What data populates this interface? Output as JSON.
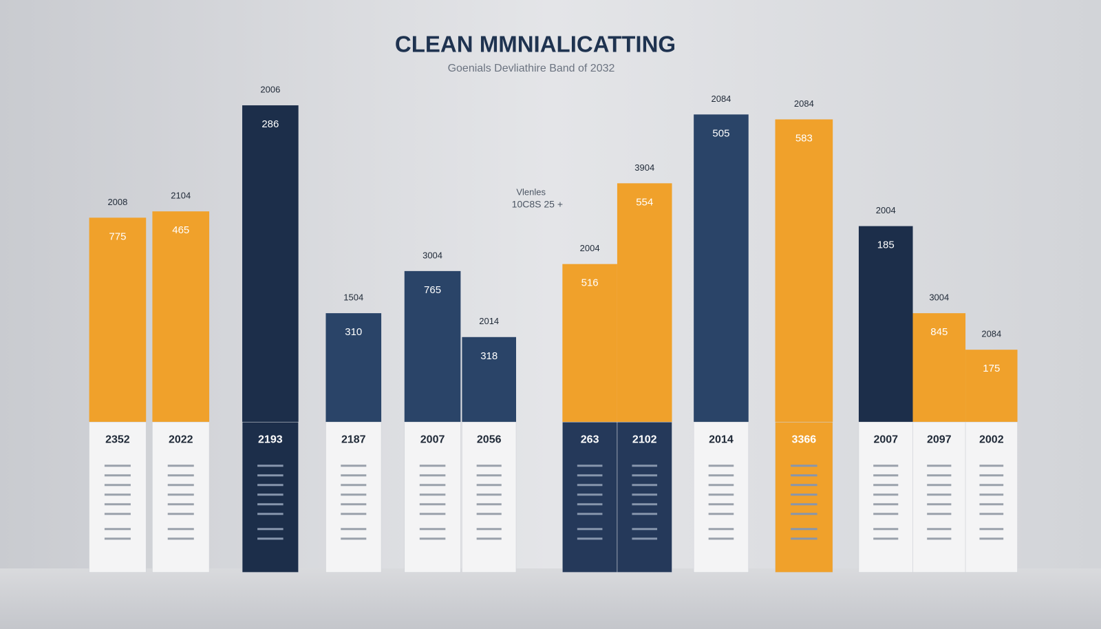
{
  "chart_data": {
    "type": "bar",
    "title": "CLEAN MMNIALICATTING",
    "subtitle": "Goenials Devliathire Band of 2032",
    "annotation": [
      "Vlenles",
      "10C8S 25 +"
    ],
    "categories": [
      "2352",
      "2022",
      "2193",
      "2187",
      "2007",
      "2056",
      "263",
      "2102",
      "2014",
      "3366",
      "2007",
      "2097",
      "2002"
    ],
    "top_labels": [
      "2008",
      "2104",
      "2006",
      "1504",
      "3004",
      "2014",
      "2004",
      "3904",
      "2084",
      "2084",
      "2004",
      "3004",
      "2084"
    ],
    "inner_labels": [
      "775",
      "465",
      "286",
      "310",
      "765",
      "318",
      "516",
      "554",
      "505",
      "583",
      "185",
      "845",
      "175"
    ],
    "values": [
      291,
      300,
      451,
      155,
      215,
      121,
      225,
      340,
      438,
      431,
      279,
      155,
      103
    ],
    "colors": [
      "#f0a12b",
      "#f0a12b",
      "#1c2e4a",
      "#2a4468",
      "#2a4468",
      "#2a4468",
      "#f0a12b",
      "#f0a12b",
      "#2a4468",
      "#f0a12b",
      "#1c2e4a",
      "#f0a12b",
      "#f0a12b"
    ],
    "table_colors": [
      "#f4f4f5",
      "#f4f4f5",
      "#1c2e4a",
      "#f4f4f5",
      "#f4f4f5",
      "#f4f4f5",
      "#25395a",
      "#25395a",
      "#f4f4f5",
      "#f0a12b",
      "#f4f4f5",
      "#f4f4f5",
      "#f4f4f5"
    ]
  }
}
